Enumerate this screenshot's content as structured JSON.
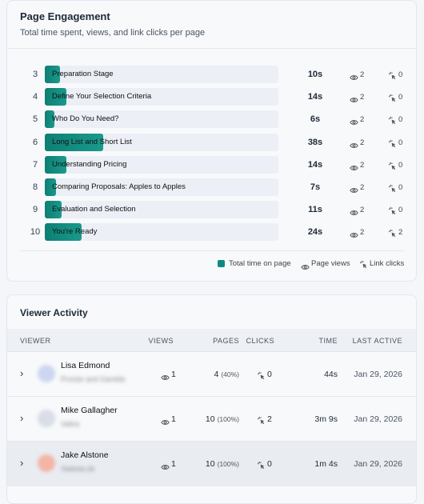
{
  "engagement": {
    "title": "Page Engagement",
    "subtitle": "Total time spent, views, and link clicks per page",
    "rows": [
      {
        "num": "3",
        "label": "Preparation Stage",
        "seconds": 10,
        "time": "10s",
        "views": 2,
        "clicks": 0
      },
      {
        "num": "4",
        "label": "Define Your Selection Criteria",
        "seconds": 14,
        "time": "14s",
        "views": 2,
        "clicks": 0
      },
      {
        "num": "5",
        "label": "Who Do You Need?",
        "seconds": 6,
        "time": "6s",
        "views": 2,
        "clicks": 0
      },
      {
        "num": "6",
        "label": "Long List and Short List",
        "seconds": 38,
        "time": "38s",
        "views": 2,
        "clicks": 0
      },
      {
        "num": "7",
        "label": "Understanding Pricing",
        "seconds": 14,
        "time": "14s",
        "views": 2,
        "clicks": 0
      },
      {
        "num": "8",
        "label": "Comparing Proposals: Apples to Apples",
        "seconds": 7,
        "time": "7s",
        "views": 2,
        "clicks": 0
      },
      {
        "num": "9",
        "label": "Evaluation and Selection",
        "seconds": 11,
        "time": "11s",
        "views": 2,
        "clicks": 0
      },
      {
        "num": "10",
        "label": "You're Ready",
        "seconds": 24,
        "time": "24s",
        "views": 2,
        "clicks": 2
      }
    ],
    "legend": [
      "Total time on page",
      "Page views",
      "Link clicks"
    ]
  },
  "activity": {
    "title": "Viewer Activity",
    "columns": [
      "VIEWER",
      "VIEWS",
      "PAGES",
      "CLICKS",
      "TIME",
      "LAST ACTIVE"
    ],
    "rows": [
      {
        "name": "Lisa Edmond",
        "company": "Procter and Gamble",
        "views": 1,
        "pages": 4,
        "pct": "(40%)",
        "clicks": 0,
        "time": "44s",
        "last": "Jan 29, 2026"
      },
      {
        "name": "Mike Gallagher",
        "company": "Vatira",
        "views": 1,
        "pages": 10,
        "pct": "(100%)",
        "clicks": 2,
        "time": "3m 9s",
        "last": "Jan 29, 2026"
      },
      {
        "name": "Jake Alstone",
        "company": "Statista.de",
        "views": 1,
        "pages": 10,
        "pct": "(100%)",
        "clicks": 0,
        "time": "1m 4s",
        "last": "Jan 29, 2026"
      }
    ]
  }
}
